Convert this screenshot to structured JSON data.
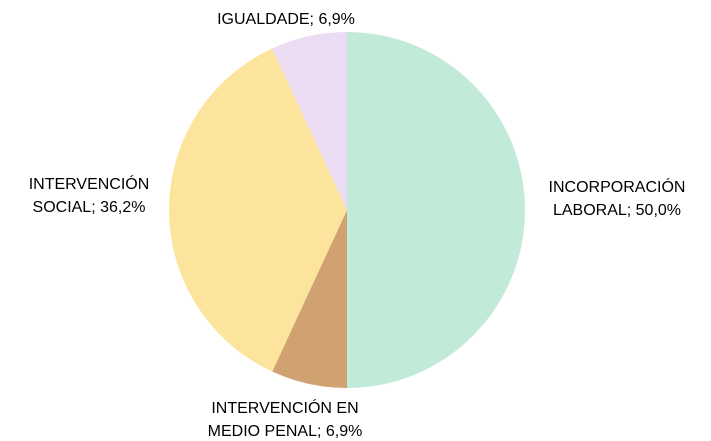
{
  "chart_data": {
    "type": "pie",
    "values": [
      50.0,
      6.9,
      36.2,
      6.9
    ],
    "value_labels": [
      [
        "INCORPORACIÓN",
        "LABORAL; 50,0%"
      ],
      [
        "INTERVENCIÓN EN",
        "MEDIO PENAL; 6,9%"
      ],
      [
        "INTERVENCIÓN",
        "SOCIAL; 36,2%"
      ],
      [
        "IGUALDADE; 6,9%"
      ]
    ],
    "colors": [
      "#c2ead8",
      "#d0a272",
      "#fde49c",
      "#ecdcf3"
    ]
  }
}
